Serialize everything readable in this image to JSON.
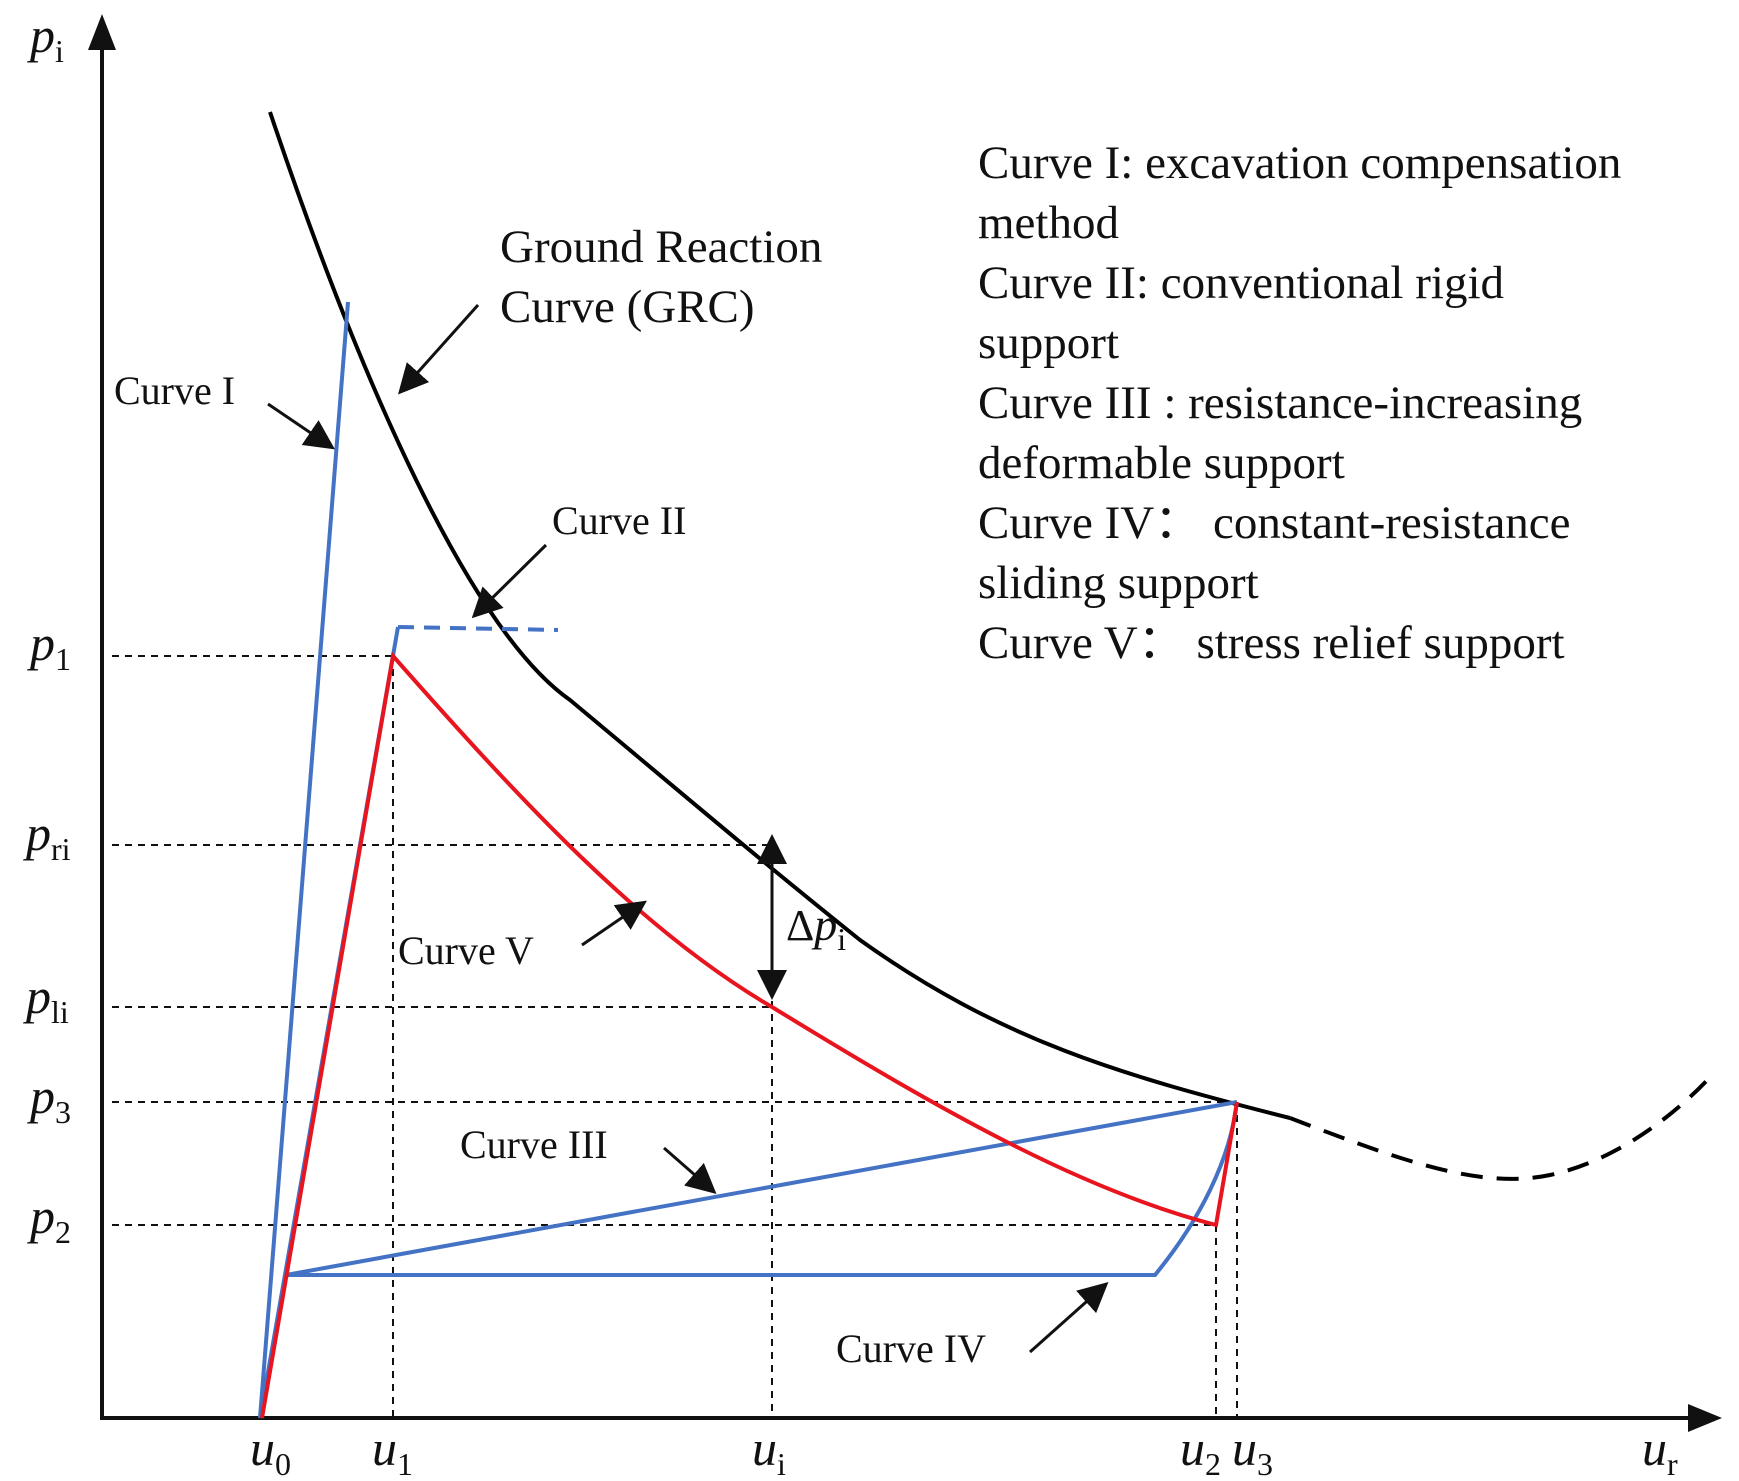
{
  "axes": {
    "y_label": {
      "main": "p",
      "sub": "i"
    },
    "x_label": {
      "main": "u",
      "sub": "r"
    }
  },
  "y_ticks": [
    {
      "id": "p1",
      "main": "p",
      "sub": "1"
    },
    {
      "id": "pri",
      "main": "p",
      "sub": "ri"
    },
    {
      "id": "pli",
      "main": "p",
      "sub": "li"
    },
    {
      "id": "p3",
      "main": "p",
      "sub": "3"
    },
    {
      "id": "p2",
      "main": "p",
      "sub": "2"
    }
  ],
  "x_ticks": [
    {
      "id": "u0",
      "main": "u",
      "sub": "0"
    },
    {
      "id": "u1",
      "main": "u",
      "sub": "1"
    },
    {
      "id": "ui",
      "main": "u",
      "sub": "i"
    },
    {
      "id": "u2",
      "main": "u",
      "sub": "2"
    },
    {
      "id": "u3",
      "main": "u",
      "sub": "3"
    }
  ],
  "grc_label": {
    "line1": "Ground Reaction",
    "line2": "Curve (GRC)"
  },
  "curve_labels": {
    "c1": "Curve I",
    "c2": "Curve II",
    "c3": "Curve III",
    "c4": "Curve IV",
    "c5": "Curve V"
  },
  "delta": {
    "symbol": "Δ",
    "main": "p",
    "sub": "i"
  },
  "legend": [
    "Curve I: excavation compensation",
    "method",
    "Curve II: conventional rigid",
    "support",
    "Curve III : resistance-increasing",
    "deformable support",
    "Curve IV：  constant-resistance",
    "sliding support",
    "Curve V：  stress relief support"
  ],
  "colors": {
    "grc": "#000000",
    "support_blue": "#4472C4",
    "relief_red": "#E8141E",
    "text": "#111111"
  }
}
